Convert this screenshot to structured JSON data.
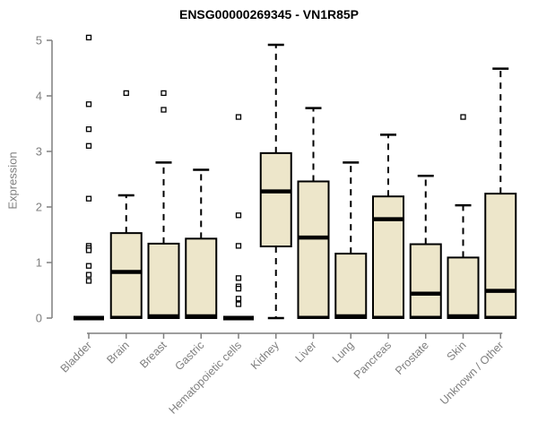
{
  "page": {
    "background": "#ffffff"
  },
  "chart_data": {
    "type": "boxplot",
    "title": "ENSG00000269345 - VN1R85P",
    "xlabel": "",
    "ylabel": "Expression",
    "ylim": [
      0,
      5
    ],
    "yticks": [
      0,
      1,
      2,
      3,
      4,
      5
    ],
    "grid": false,
    "legend": "none",
    "colors": {
      "box_fill": "#EDE6CA",
      "box_border": "#000000",
      "median": "#000000",
      "whisker": "#000000",
      "axis": "#7f7f7f",
      "tick_label": "#7f7f7f",
      "title": "#000000",
      "background": "#ffffff"
    },
    "categories": [
      "Bladder",
      "Brain",
      "Breast",
      "Gastric",
      "Hematopoietic cells",
      "Kidney",
      "Liver",
      "Lung",
      "Pancreas",
      "Prostate",
      "Skin",
      "Unknown / Other"
    ],
    "series": [
      {
        "category": "Bladder",
        "q1": 0,
        "median": 0,
        "q3": 0,
        "whisker_low": 0,
        "whisker_high": 0,
        "outliers": [
          5.05,
          3.85,
          3.4,
          3.1,
          2.15,
          1.3,
          1.26,
          1.22,
          0.94,
          0.78,
          0.67
        ]
      },
      {
        "category": "Brain",
        "q1": 0,
        "median": 0.83,
        "q3": 1.53,
        "whisker_low": 0,
        "whisker_high": 2.21,
        "outliers": [
          4.05
        ]
      },
      {
        "category": "Breast",
        "q1": 0,
        "median": 0,
        "q3": 1.34,
        "whisker_low": 0,
        "whisker_high": 2.8,
        "outliers": [
          4.05,
          3.75
        ]
      },
      {
        "category": "Gastric",
        "q1": 0,
        "median": 0,
        "q3": 1.43,
        "whisker_low": 0,
        "whisker_high": 2.67,
        "outliers": []
      },
      {
        "category": "Hematopoietic cells",
        "q1": 0,
        "median": 0,
        "q3": 0,
        "whisker_low": 0,
        "whisker_high": 0,
        "outliers": [
          3.62,
          1.85,
          1.3,
          0.72,
          0.57,
          0.53,
          0.35,
          0.25
        ]
      },
      {
        "category": "Kidney",
        "q1": 1.29,
        "median": 2.28,
        "q3": 2.97,
        "whisker_low": 0,
        "whisker_high": 4.92,
        "outliers": []
      },
      {
        "category": "Liver",
        "q1": 0,
        "median": 1.45,
        "q3": 2.46,
        "whisker_low": 0,
        "whisker_high": 3.78,
        "outliers": []
      },
      {
        "category": "Lung",
        "q1": 0,
        "median": 0,
        "q3": 1.16,
        "whisker_low": 0,
        "whisker_high": 2.8,
        "outliers": []
      },
      {
        "category": "Pancreas",
        "q1": 0,
        "median": 1.78,
        "q3": 2.19,
        "whisker_low": 0,
        "whisker_high": 3.3,
        "outliers": []
      },
      {
        "category": "Prostate",
        "q1": 0,
        "median": 0.44,
        "q3": 1.33,
        "whisker_low": 0,
        "whisker_high": 2.56,
        "outliers": []
      },
      {
        "category": "Skin",
        "q1": 0,
        "median": 0,
        "q3": 1.09,
        "whisker_low": 0,
        "whisker_high": 2.03,
        "outliers": [
          3.62
        ]
      },
      {
        "category": "Unknown / Other",
        "q1": 0,
        "median": 0.49,
        "q3": 2.24,
        "whisker_low": 0,
        "whisker_high": 4.49,
        "outliers": []
      }
    ]
  }
}
